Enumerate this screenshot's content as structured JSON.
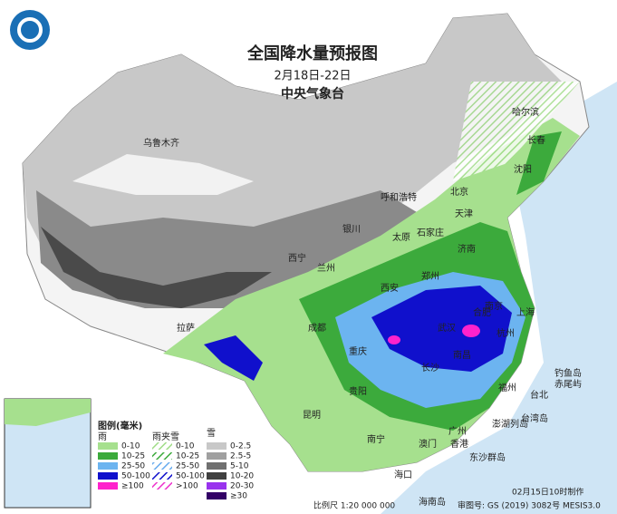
{
  "header": {
    "title": "全国降水量预报图",
    "subtitle": "2月18日-22日",
    "agency": "中央气象台"
  },
  "cities": [
    "乌鲁木齐",
    "呼和浩特",
    "北京",
    "天津",
    "石家庄",
    "太原",
    "济南",
    "郑州",
    "西安",
    "兰州",
    "西宁",
    "银川",
    "哈尔滨",
    "长春",
    "沈阳",
    "拉萨",
    "成都",
    "重庆",
    "贵阳",
    "昆明",
    "南宁",
    "广州",
    "澳门",
    "香港",
    "海口",
    "长沙",
    "南昌",
    "武汉",
    "合肥",
    "南京",
    "上海",
    "杭州",
    "福州",
    "台北",
    "台湾岛",
    "海南岛",
    "钓鱼岛",
    "赤尾屿",
    "澎湖列岛",
    "东沙群岛"
  ],
  "legend": {
    "title": "图例(毫米)",
    "columns": [
      {
        "title": "雨",
        "items": [
          "0-10",
          "10-25",
          "25-50",
          "50-100",
          "≥100"
        ]
      },
      {
        "title": "雨夹雪",
        "items": [
          "0-10",
          "10-25",
          "25-50",
          "50-100",
          ">100"
        ]
      },
      {
        "title": "雪",
        "items": [
          "0-2.5",
          "2.5-5",
          "5-10",
          "10-20",
          "20-30",
          "≥30"
        ]
      }
    ]
  },
  "footer": {
    "scale": "比例尺 1:20 000 000",
    "approval": "审图号: GS (2019) 3082号 MESIS3.0",
    "made": "02月15日10时制作"
  }
}
